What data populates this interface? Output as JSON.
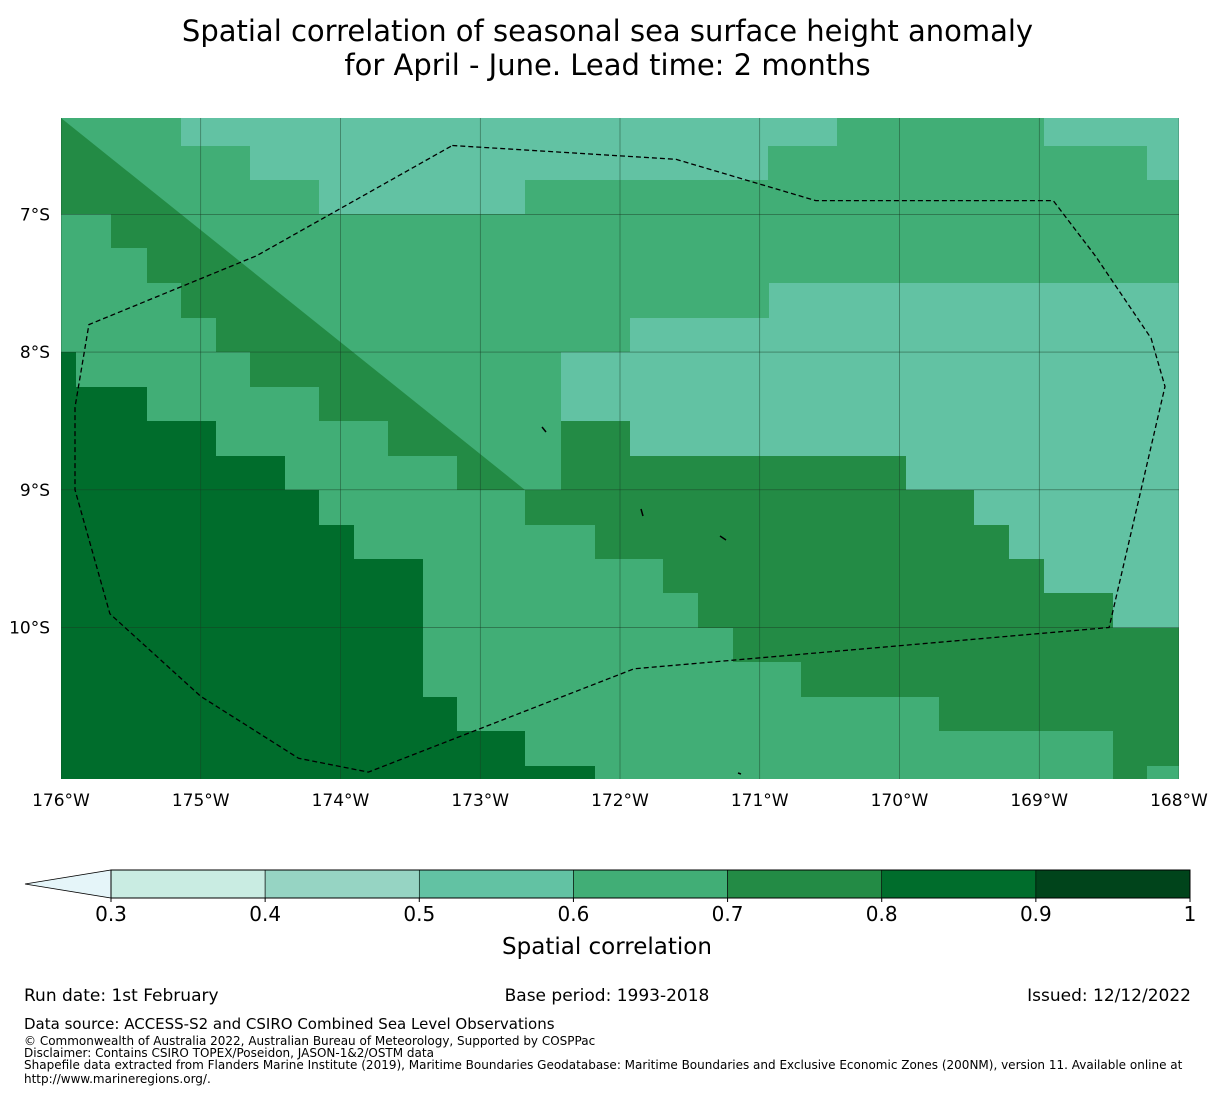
{
  "title": {
    "line1": "Spatial correlation of seasonal sea surface height anomaly",
    "line2": "for April - June. Lead time: 2 months"
  },
  "map": {
    "lon_range": [
      -176,
      -168
    ],
    "lat_range": [
      -11.1,
      -6.3
    ],
    "x_ticks": [
      {
        "lon": -176,
        "label": "176°W"
      },
      {
        "lon": -175,
        "label": "175°W"
      },
      {
        "lon": -174,
        "label": "174°W"
      },
      {
        "lon": -173,
        "label": "173°W"
      },
      {
        "lon": -172,
        "label": "172°W"
      },
      {
        "lon": -171,
        "label": "171°W"
      },
      {
        "lon": -170,
        "label": "170°W"
      },
      {
        "lon": -169,
        "label": "169°W"
      },
      {
        "lon": -168,
        "label": "168°W"
      }
    ],
    "y_ticks": [
      {
        "lat": -7,
        "label": "7°S"
      },
      {
        "lat": -8,
        "label": "8°S"
      },
      {
        "lat": -9,
        "label": "9°S"
      },
      {
        "lat": -10,
        "label": "10°S"
      }
    ],
    "levels": [
      0.3,
      0.4,
      0.5,
      0.6,
      0.7,
      0.8,
      0.9,
      1.0
    ],
    "colors": [
      "#c9ece2",
      "#96d4c3",
      "#62c2a3",
      "#41ae76",
      "#238b45",
      "#006d2c",
      "#00441b"
    ],
    "under_color": "#e5f5f9",
    "eez_boundary": [
      [
        -173.2,
        -6.5
      ],
      [
        -171.6,
        -6.6
      ],
      [
        -170.6,
        -6.9
      ],
      [
        -168.9,
        -6.9
      ],
      [
        -168.6,
        -7.3
      ],
      [
        -168.2,
        -7.9
      ],
      [
        -168.1,
        -8.25
      ],
      [
        -168.5,
        -10.0
      ],
      [
        -171.9,
        -10.3
      ],
      [
        -173.8,
        -11.05
      ],
      [
        -174.3,
        -10.95
      ],
      [
        -175.0,
        -10.5
      ],
      [
        -175.65,
        -9.9
      ],
      [
        -175.9,
        -9.0
      ],
      [
        -175.9,
        -8.4
      ],
      [
        -175.8,
        -7.8
      ],
      [
        -174.6,
        -7.3
      ],
      [
        -173.2,
        -6.5
      ]
    ]
  },
  "colorbar": {
    "tick_labels": [
      "0.3",
      "0.4",
      "0.5",
      "0.6",
      "0.7",
      "0.8",
      "0.9",
      "1"
    ],
    "label": "Spatial correlation"
  },
  "footer": {
    "run_date": "Run date: 1st February",
    "base_period": "Base period: 1993-2018",
    "issued": "Issued: 12/12/2022",
    "data_source": "Data source: ACCESS-S2 and CSIRO Combined Sea Level Observations",
    "copyright": "© Commonwealth of Australia 2022, Australian Bureau of Meteorology, Supported by COSPPac",
    "disclaimer": "Disclaimer: Contains CSIRO TOPEX/Poseidon, JASON-1&2/OSTM data",
    "shapefile_1": "Shapefile data extracted from Flanders Marine Institute (2019), Maritime Boundaries Geodatabase: Maritime Boundaries and Exclusive Economic Zones (200NM), version 11. Available online at",
    "shapefile_2": "http://www.marineregions.org/."
  }
}
